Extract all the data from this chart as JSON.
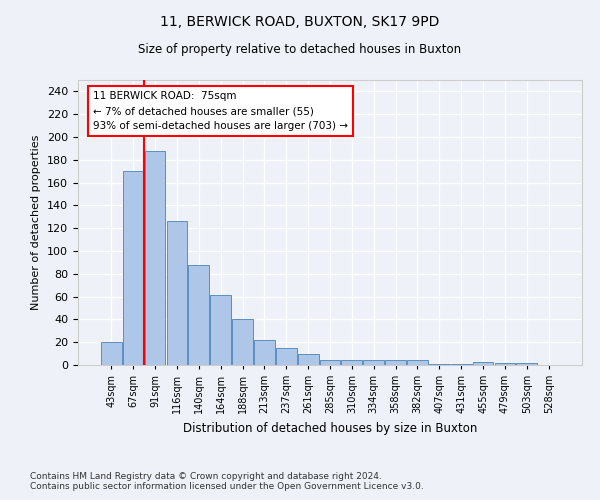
{
  "title1": "11, BERWICK ROAD, BUXTON, SK17 9PD",
  "title2": "Size of property relative to detached houses in Buxton",
  "xlabel": "Distribution of detached houses by size in Buxton",
  "ylabel": "Number of detached properties",
  "categories": [
    "43sqm",
    "67sqm",
    "91sqm",
    "116sqm",
    "140sqm",
    "164sqm",
    "188sqm",
    "213sqm",
    "237sqm",
    "261sqm",
    "285sqm",
    "310sqm",
    "334sqm",
    "358sqm",
    "382sqm",
    "407sqm",
    "431sqm",
    "455sqm",
    "479sqm",
    "503sqm",
    "528sqm"
  ],
  "values": [
    20,
    170,
    188,
    126,
    88,
    61,
    40,
    22,
    15,
    10,
    4,
    4,
    4,
    4,
    4,
    1,
    1,
    3,
    2,
    2,
    0
  ],
  "bar_color": "#aec6e8",
  "bar_edge_color": "#5a8fc0",
  "vline_x": 1.5,
  "vline_color": "red",
  "annotation_text": "11 BERWICK ROAD:  75sqm\n← 7% of detached houses are smaller (55)\n93% of semi-detached houses are larger (703) →",
  "annotation_box_color": "white",
  "annotation_box_edge": "red",
  "ylim": [
    0,
    250
  ],
  "yticks": [
    0,
    20,
    40,
    60,
    80,
    100,
    120,
    140,
    160,
    180,
    200,
    220,
    240
  ],
  "footer1": "Contains HM Land Registry data © Crown copyright and database right 2024.",
  "footer2": "Contains public sector information licensed under the Open Government Licence v3.0.",
  "background_color": "#eef2f8",
  "plot_bg_color": "#eef2f8"
}
